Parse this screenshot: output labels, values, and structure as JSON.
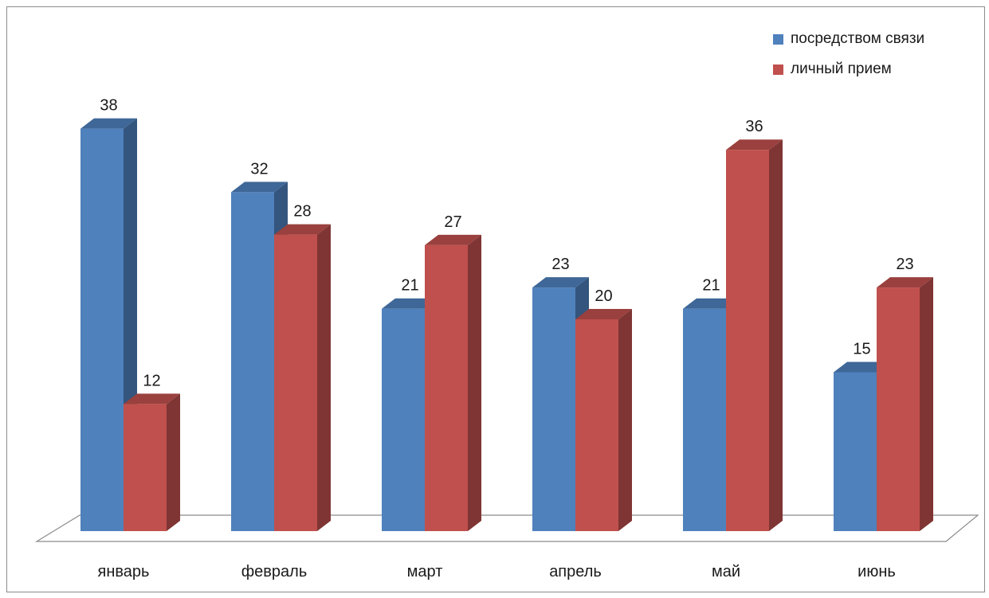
{
  "chart_data": {
    "type": "bar",
    "categories": [
      "январь",
      "февраль",
      "март",
      "апрель",
      "май",
      "июнь"
    ],
    "series": [
      {
        "name": "посредством связи",
        "values": [
          38,
          32,
          21,
          23,
          21,
          15
        ],
        "color": "#4f81bd"
      },
      {
        "name": "личный прием",
        "values": [
          12,
          28,
          27,
          20,
          36,
          23
        ],
        "color": "#c0504d"
      }
    ],
    "legend": "top-right",
    "grid": false,
    "ylim": [
      0,
      40
    ]
  }
}
